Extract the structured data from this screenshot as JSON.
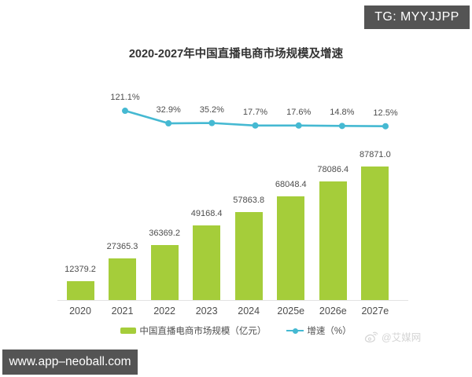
{
  "watermarks": {
    "telegram": "TG: MYYJJPP",
    "website": "www.app–neoball.com",
    "source_handle": "@艾媒网"
  },
  "colors": {
    "bar": "#a5cd3a",
    "line": "#45b9d2",
    "badge_bg": "#545454",
    "axis_line": "#e3e3e3",
    "label_text": "#4d4d4d",
    "title_text": "#333333",
    "watermark_text": "#d4d4d4",
    "background": "#ffffff"
  },
  "chart_data": {
    "type": "bar",
    "title": "2020-2027年中国直播电商市场规模及增速",
    "categories": [
      "2020",
      "2021",
      "2022",
      "2023",
      "2024",
      "2025e",
      "2026e",
      "2027e"
    ],
    "series": [
      {
        "name": "中国直播电商市场规模（亿元）",
        "chart_type": "bar",
        "color": "#a5cd3a",
        "values": [
          12379.2,
          27365.3,
          36369.2,
          49168.4,
          57863.8,
          68048.4,
          78086.4,
          87871.0
        ],
        "value_labels": [
          "12379.2",
          "27365.3",
          "36369.2",
          "49168.4",
          "57863.8",
          "68048.4",
          "78086.4",
          "87871.0"
        ]
      },
      {
        "name": "增速（%）",
        "chart_type": "line",
        "color": "#45b9d2",
        "categories": [
          "2021",
          "2022",
          "2023",
          "2024",
          "2025e",
          "2026e",
          "2027e"
        ],
        "values": [
          121.1,
          32.9,
          35.2,
          17.7,
          17.6,
          14.8,
          12.5
        ],
        "value_labels": [
          "121.1%",
          "32.9%",
          "35.2%",
          "17.7%",
          "17.6%",
          "14.8%",
          "12.5%"
        ]
      }
    ],
    "xlabel": "",
    "ylabel": "",
    "grid": false,
    "y_axis_visible": false,
    "legend_position": "bottom",
    "value_labels_shown": true
  }
}
